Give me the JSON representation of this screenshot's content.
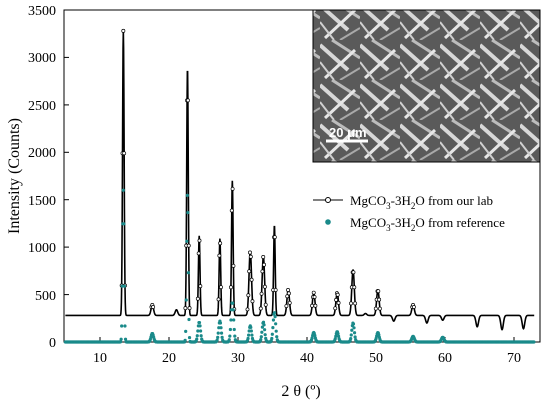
{
  "chart_data": {
    "type": "line",
    "xlabel": "2 θ (º)",
    "ylabel": "Intensity (Counts)",
    "xlim": [
      5,
      74
    ],
    "ylim": [
      0,
      3500
    ],
    "xticks": [
      10,
      20,
      30,
      40,
      50,
      60,
      70
    ],
    "yticks": [
      0,
      500,
      1000,
      1500,
      2000,
      2500,
      3000,
      3500
    ],
    "grid": false,
    "legend_position": "right",
    "series": [
      {
        "name": "MgCO3-3H2O from our lab",
        "label_main": "MgCO",
        "label_sub1": "3",
        "label_mid": "-3H",
        "label_sub2": "2",
        "label_tail": "O from our lab",
        "color": "#000000",
        "style": "open-circle-line",
        "baseline": 280,
        "peaks": [
          {
            "x": 13.6,
            "y": 3280
          },
          {
            "x": 17.8,
            "y": 390
          },
          {
            "x": 21.3,
            "y": 340
          },
          {
            "x": 22.9,
            "y": 2890
          },
          {
            "x": 24.6,
            "y": 1120
          },
          {
            "x": 27.6,
            "y": 1090
          },
          {
            "x": 29.4,
            "y": 1700
          },
          {
            "x": 32.0,
            "y": 960
          },
          {
            "x": 33.9,
            "y": 900
          },
          {
            "x": 35.5,
            "y": 1230
          },
          {
            "x": 37.5,
            "y": 550
          },
          {
            "x": 41.2,
            "y": 520
          },
          {
            "x": 44.6,
            "y": 520
          },
          {
            "x": 46.9,
            "y": 760
          },
          {
            "x": 48.7,
            "y": 300
          },
          {
            "x": 50.5,
            "y": 550
          },
          {
            "x": 52.8,
            "y": 220
          },
          {
            "x": 55.6,
            "y": 390
          },
          {
            "x": 57.6,
            "y": 200
          },
          {
            "x": 59.9,
            "y": 230
          },
          {
            "x": 64.9,
            "y": 160
          },
          {
            "x": 68.5,
            "y": 130
          },
          {
            "x": 71.6,
            "y": 140
          }
        ]
      },
      {
        "name": "MgCO3-3H2O from reference",
        "label_main": "MgCO",
        "label_sub1": "3",
        "label_mid": "-3H",
        "label_sub2": "2",
        "label_tail": "O from reference",
        "color": "#1a8a8a",
        "style": "filled-dot",
        "baseline": 0,
        "peaks": [
          {
            "x": 13.6,
            "y": 1600
          },
          {
            "x": 17.8,
            "y": 90
          },
          {
            "x": 22.9,
            "y": 1570
          },
          {
            "x": 24.6,
            "y": 210
          },
          {
            "x": 27.6,
            "y": 220
          },
          {
            "x": 29.4,
            "y": 420
          },
          {
            "x": 32.0,
            "y": 170
          },
          {
            "x": 33.9,
            "y": 210
          },
          {
            "x": 35.5,
            "y": 310
          },
          {
            "x": 41.2,
            "y": 100
          },
          {
            "x": 44.6,
            "y": 110
          },
          {
            "x": 46.9,
            "y": 200
          },
          {
            "x": 50.5,
            "y": 100
          },
          {
            "x": 55.6,
            "y": 60
          },
          {
            "x": 59.9,
            "y": 50
          }
        ]
      }
    ],
    "inset": {
      "description": "SEM micrograph",
      "scale_bar": "20 μm"
    }
  }
}
